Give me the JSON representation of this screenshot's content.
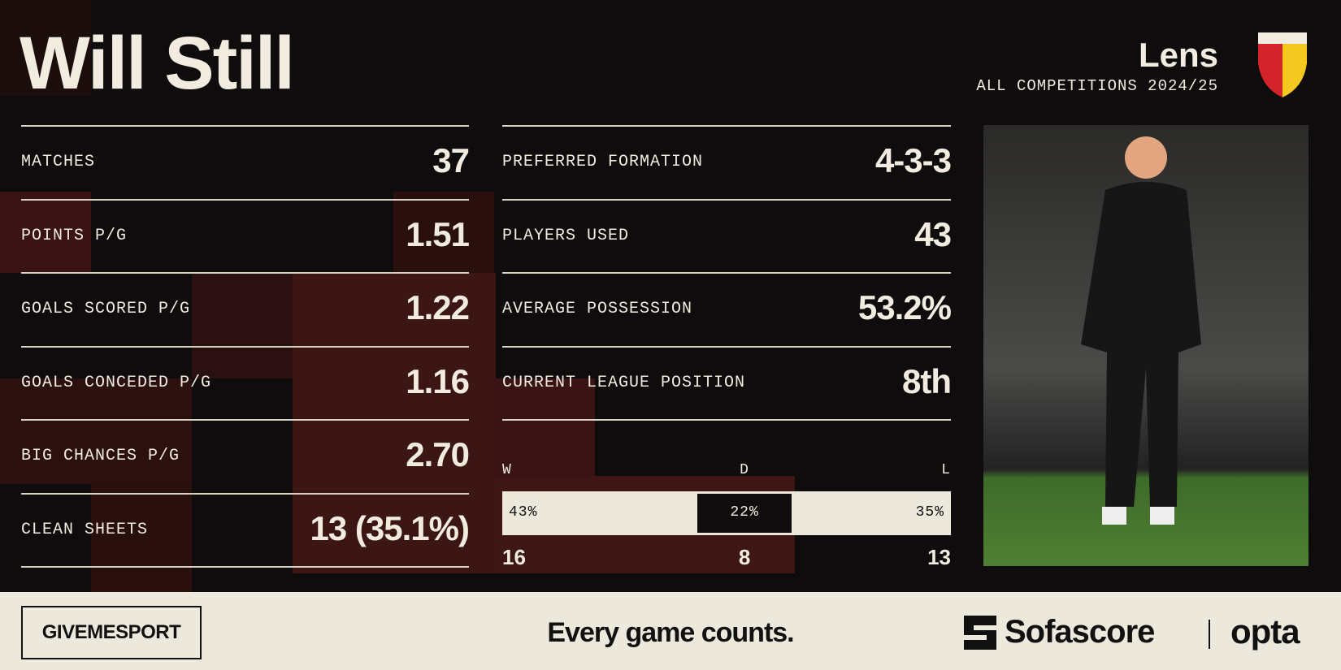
{
  "header": {
    "title": "Will Still",
    "team": "Lens",
    "subtitle": "ALL COMPETITIONS 2024/25"
  },
  "stats_left": [
    {
      "label": "MATCHES",
      "value": 37
    },
    {
      "label": "POINTS P/G",
      "value": 1.51
    },
    {
      "label": "GOALS SCORED P/G",
      "value": 1.22
    },
    {
      "label": "GOALS CONCEDED P/G",
      "value": 1.16
    },
    {
      "label": "BIG CHANCES P/G",
      "value": "2.70"
    },
    {
      "label": "CLEAN SHEETS",
      "value": "13 (35.1%)"
    }
  ],
  "stats_right": [
    {
      "label": "PREFERRED FORMATION",
      "value": "4-3-3"
    },
    {
      "label": "PLAYERS USED",
      "value": 43
    },
    {
      "label": "AVERAGE POSSESSION",
      "value": "53.2%"
    },
    {
      "label": "CURRENT LEAGUE POSITION",
      "value": "8th"
    }
  ],
  "results": [
    {
      "letter": "W",
      "pct": 43,
      "pct_label": "43%",
      "count": 16
    },
    {
      "letter": "D",
      "pct": 22,
      "pct_label": "22%",
      "count": 8
    },
    {
      "letter": "L",
      "pct": 35,
      "pct_label": "35%",
      "count": 13
    }
  ],
  "footer": {
    "brand": "GIVEMESPORT",
    "tagline": "Every game counts.",
    "sofascore": "Sofascore",
    "opta": "opta"
  }
}
